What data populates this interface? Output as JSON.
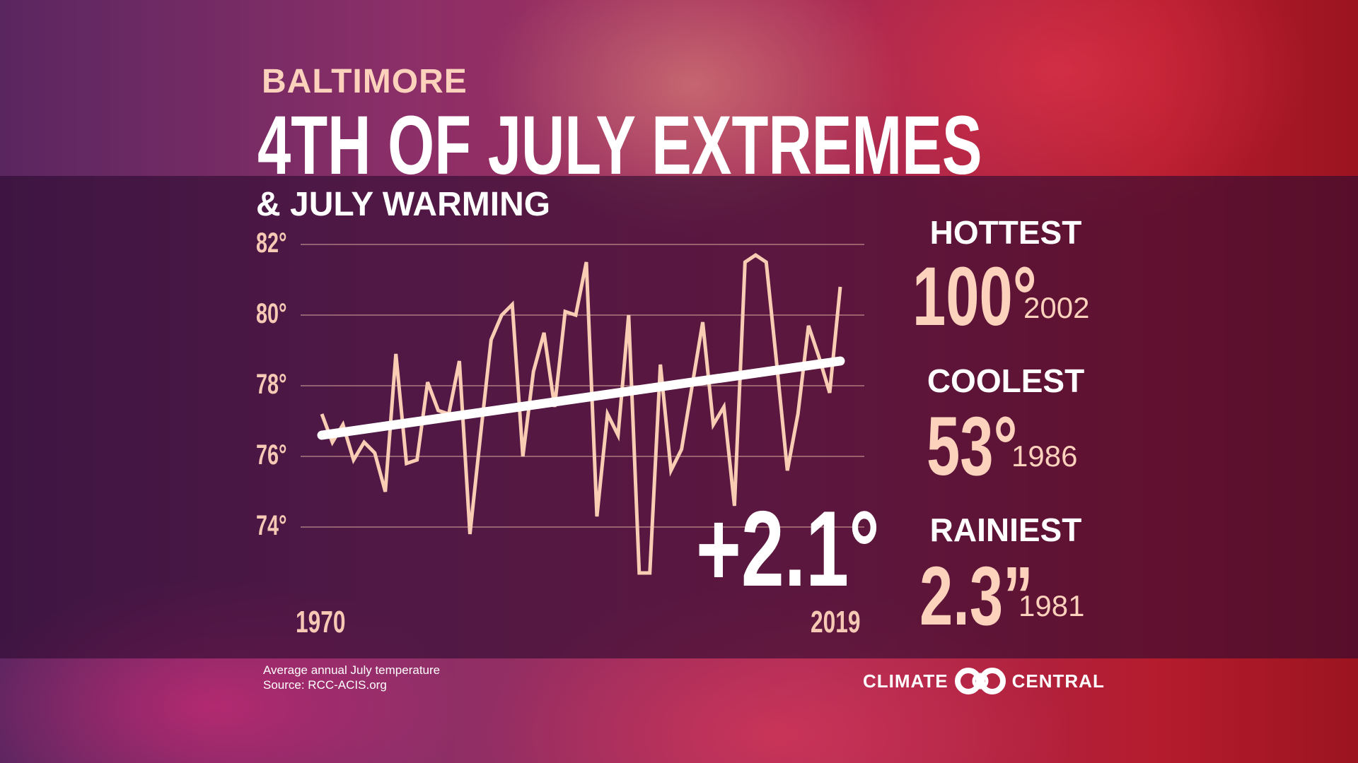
{
  "header": {
    "city": "BALTIMORE",
    "title": "4TH OF JULY EXTREMES",
    "subtitle": "& JULY WARMING"
  },
  "chart_data": {
    "type": "line",
    "title": "Average annual July temperature",
    "xlabel": "",
    "ylabel": "",
    "ylim": [
      72,
      82
    ],
    "yticks": [
      {
        "value": 82,
        "label": "82°"
      },
      {
        "value": 80,
        "label": "80°"
      },
      {
        "value": 78,
        "label": "78°"
      },
      {
        "value": 76,
        "label": "76°"
      },
      {
        "value": 74,
        "label": "74°"
      }
    ],
    "xtick_labels": {
      "start": "1970",
      "end": "2019"
    },
    "x": [
      1970,
      1971,
      1972,
      1973,
      1974,
      1975,
      1976,
      1977,
      1978,
      1979,
      1980,
      1981,
      1982,
      1983,
      1984,
      1985,
      1986,
      1987,
      1988,
      1989,
      1990,
      1991,
      1992,
      1993,
      1994,
      1995,
      1996,
      1997,
      1998,
      1999,
      2000,
      2001,
      2002,
      2003,
      2004,
      2005,
      2006,
      2007,
      2008,
      2009,
      2010,
      2011,
      2012,
      2013,
      2014,
      2015,
      2016,
      2017,
      2018,
      2019
    ],
    "series": [
      {
        "name": "July average temperature",
        "color": "#f8cdb4",
        "values": [
          77.2,
          76.4,
          76.9,
          75.9,
          76.4,
          76.1,
          75.0,
          78.9,
          75.8,
          75.9,
          78.1,
          77.3,
          77.2,
          78.7,
          73.8,
          76.6,
          79.3,
          80.0,
          80.3,
          76.0,
          78.4,
          79.5,
          77.4,
          80.1,
          80.0,
          81.5,
          74.3,
          77.2,
          76.6,
          80.0,
          72.7,
          72.7,
          78.6,
          75.6,
          76.2,
          78.0,
          79.8,
          76.9,
          77.4,
          74.6,
          81.5,
          81.7,
          81.5,
          78.6,
          75.6,
          77.2,
          79.7,
          78.8,
          77.8,
          80.8
        ]
      },
      {
        "name": "Trend",
        "color": "#ffffff",
        "values_endpoints": [
          76.6,
          78.7
        ]
      }
    ],
    "annotation": "+2.1°",
    "grid": true
  },
  "stats": [
    {
      "label": "HOTTEST",
      "value": "100°",
      "year": "2002"
    },
    {
      "label": "COOLEST",
      "value": "53°",
      "year": "1986"
    },
    {
      "label": "RAINIEST",
      "value": "2.3”",
      "year": "1981"
    }
  ],
  "footer": {
    "note": "Average annual July temperature",
    "source": "Source: RCC-ACIS.org"
  },
  "logo": {
    "left": "CLIMATE",
    "right": "CENTRAL"
  }
}
